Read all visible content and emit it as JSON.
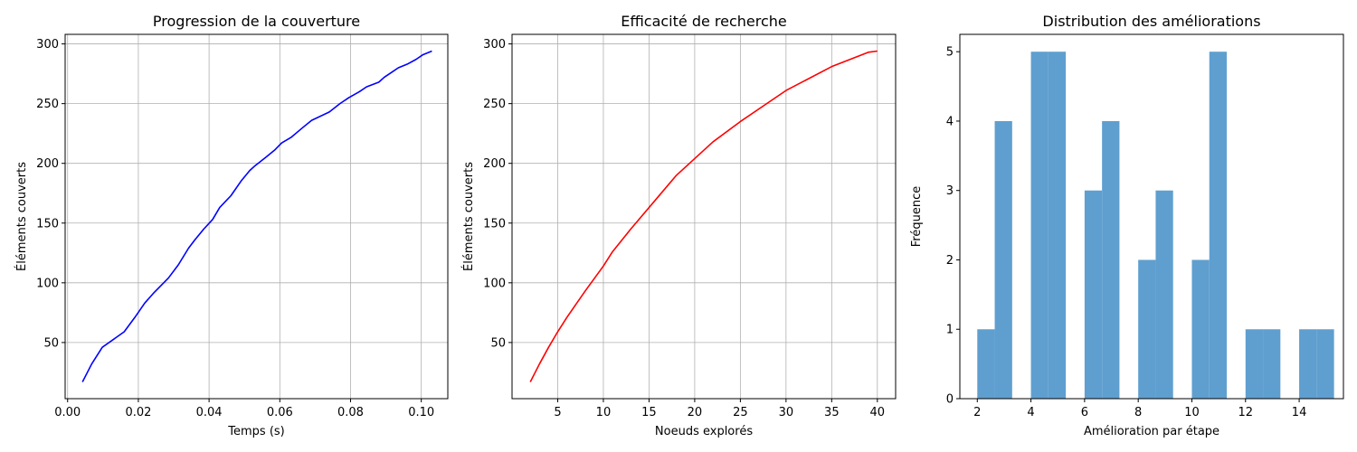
{
  "colors": {
    "line1": "#0000ff",
    "line2": "#ff0000",
    "bars": "#5f9fcf",
    "grid": "#b0b0b0"
  },
  "chart_data": [
    {
      "type": "line",
      "title": "Progression de la couverture",
      "xlabel": "Temps (s)",
      "ylabel": "Éléments couverts",
      "xlim": [
        -0.0007,
        0.1075
      ],
      "ylim": [
        3.0,
        308.0
      ],
      "xticks": [
        0.0,
        0.02,
        0.04,
        0.06,
        0.08,
        0.1
      ],
      "xticklabels": [
        "0.00",
        "0.02",
        "0.04",
        "0.06",
        "0.08",
        "0.10"
      ],
      "yticks": [
        50,
        100,
        150,
        200,
        250,
        300
      ],
      "yticklabels": [
        "50",
        "100",
        "150",
        "200",
        "250",
        "300"
      ],
      "grid": true,
      "series": [
        {
          "color": "line1",
          "x": [
            0.0042,
            0.0068,
            0.0098,
            0.016,
            0.019,
            0.0218,
            0.0245,
            0.0285,
            0.0313,
            0.0342,
            0.036,
            0.0385,
            0.041,
            0.043,
            0.0462,
            0.049,
            0.0515,
            0.053,
            0.056,
            0.0585,
            0.0605,
            0.0633,
            0.0665,
            0.069,
            0.074,
            0.077,
            0.0795,
            0.0825,
            0.0845,
            0.088,
            0.0895,
            0.0915,
            0.0935,
            0.096,
            0.0985,
            0.1005,
            0.103
          ],
          "y": [
            17,
            32,
            46,
            59,
            71,
            83,
            92,
            104,
            115,
            129,
            136,
            145,
            153,
            163,
            173,
            185,
            194,
            198,
            205,
            211,
            217,
            222,
            230,
            236,
            243,
            250,
            255,
            260,
            264,
            268,
            272,
            276,
            280,
            283,
            287,
            291,
            294
          ]
        }
      ]
    },
    {
      "type": "line",
      "title": "Efficacité de recherche",
      "xlabel": "Noeuds explorés",
      "ylabel": "Éléments couverts",
      "xlim": [
        0.0,
        42.0
      ],
      "ylim": [
        3.0,
        308.0
      ],
      "xticks": [
        5,
        10,
        15,
        20,
        25,
        30,
        35,
        40
      ],
      "xticklabels": [
        "5",
        "10",
        "15",
        "20",
        "25",
        "30",
        "35",
        "40"
      ],
      "yticks": [
        50,
        100,
        150,
        200,
        250,
        300
      ],
      "yticklabels": [
        "50",
        "100",
        "150",
        "200",
        "250",
        "300"
      ],
      "grid": true,
      "series": [
        {
          "color": "line2",
          "x": [
            2,
            3,
            4,
            5,
            6,
            8,
            10,
            11,
            13,
            16,
            18,
            20,
            22,
            25,
            30,
            35,
            39,
            40
          ],
          "y": [
            17,
            32,
            46,
            59,
            71,
            93,
            114,
            126,
            145,
            172,
            190,
            204,
            218,
            235,
            261,
            281,
            293,
            294
          ]
        }
      ]
    },
    {
      "type": "bar",
      "title": "Distribution des améliorations",
      "xlabel": "Amélioration par étape",
      "ylabel": "Fréquence",
      "xlim": [
        1.35,
        15.65
      ],
      "ylim": [
        0,
        5.25
      ],
      "xticks": [
        2,
        4,
        6,
        8,
        10,
        12,
        14
      ],
      "xticklabels": [
        "2",
        "4",
        "6",
        "8",
        "10",
        "12",
        "14"
      ],
      "yticks": [
        0,
        1,
        2,
        3,
        4,
        5
      ],
      "yticklabels": [
        "0",
        "1",
        "2",
        "3",
        "4",
        "5"
      ],
      "grid": false,
      "bins": [
        [
          2.0,
          2.65
        ],
        [
          2.65,
          3.3
        ],
        [
          4.0,
          4.65
        ],
        [
          4.65,
          5.3
        ],
        [
          6.0,
          6.65
        ],
        [
          6.65,
          7.3
        ],
        [
          8.0,
          8.65
        ],
        [
          8.65,
          9.3
        ],
        [
          10.0,
          10.65
        ],
        [
          10.65,
          11.3
        ],
        [
          12.0,
          12.65
        ],
        [
          12.65,
          13.3
        ],
        [
          14.0,
          14.65
        ],
        [
          14.65,
          15.3
        ]
      ],
      "values": [
        1,
        4,
        5,
        5,
        3,
        4,
        2,
        3,
        2,
        5,
        1,
        1,
        1,
        1
      ]
    }
  ]
}
